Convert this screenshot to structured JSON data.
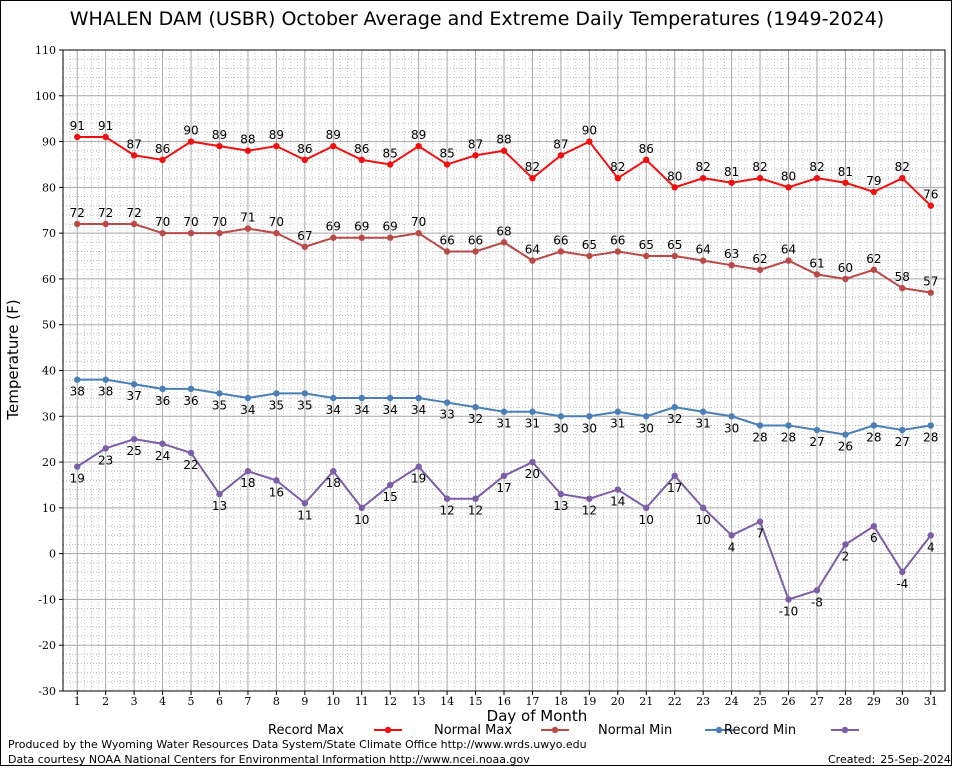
{
  "title": "WHALEN DAM (USBR) October Average and Extreme Daily Temperatures (1949-2024)",
  "footer": {
    "produced_by": "Produced by the Wyoming Water Resources Data System/State Climate Office http://www.wrds.uwyo.edu",
    "courtesy": "Data courtesy NOAA National Centers for Environmental Information http://www.ncei.noaa.gov",
    "created_label": "Created:",
    "created_date": "25-Sep-2024"
  },
  "chart_data": {
    "type": "line",
    "title": "WHALEN DAM (USBR) October Average and Extreme Daily Temperatures (1949-2024)",
    "xlabel": "Day of Month",
    "ylabel": "Temperature (F)",
    "ylim": [
      -30,
      110
    ],
    "yticks": [
      -30,
      -20,
      -10,
      0,
      10,
      20,
      30,
      40,
      50,
      60,
      70,
      80,
      90,
      100,
      110
    ],
    "x": [
      1,
      2,
      3,
      4,
      5,
      6,
      7,
      8,
      9,
      10,
      11,
      12,
      13,
      14,
      15,
      16,
      17,
      18,
      19,
      20,
      21,
      22,
      23,
      24,
      25,
      26,
      27,
      28,
      29,
      30,
      31
    ],
    "grid": true,
    "legend_position": "bottom",
    "series": [
      {
        "name": "Record Max",
        "color": "#ee1111",
        "label_side": "above",
        "values": [
          91,
          91,
          87,
          86,
          90,
          89,
          88,
          89,
          86,
          89,
          86,
          85,
          89,
          85,
          87,
          88,
          82,
          87,
          90,
          82,
          86,
          80,
          82,
          81,
          82,
          80,
          82,
          81,
          79,
          82,
          76
        ]
      },
      {
        "name": "Normal Max",
        "color": "#b94a48",
        "label_side": "above",
        "values": [
          72,
          72,
          72,
          70,
          70,
          70,
          71,
          70,
          67,
          69,
          69,
          69,
          70,
          66,
          66,
          68,
          64,
          66,
          65,
          66,
          65,
          65,
          64,
          63,
          62,
          64,
          61,
          60,
          62,
          58,
          57
        ]
      },
      {
        "name": "Normal Min",
        "color": "#4a7fb5",
        "label_side": "below",
        "values": [
          38,
          38,
          37,
          36,
          36,
          35,
          34,
          35,
          35,
          34,
          34,
          34,
          34,
          33,
          32,
          31,
          31,
          30,
          30,
          31,
          30,
          32,
          31,
          30,
          28,
          28,
          27,
          26,
          28,
          27,
          28
        ]
      },
      {
        "name": "Record Min",
        "color": "#7b5ea7",
        "label_side": "below",
        "values": [
          19,
          23,
          25,
          24,
          22,
          13,
          18,
          16,
          11,
          18,
          10,
          15,
          19,
          12,
          12,
          17,
          20,
          13,
          12,
          14,
          10,
          17,
          10,
          4,
          7,
          -10,
          -8,
          2,
          6,
          -4,
          4
        ]
      }
    ]
  }
}
